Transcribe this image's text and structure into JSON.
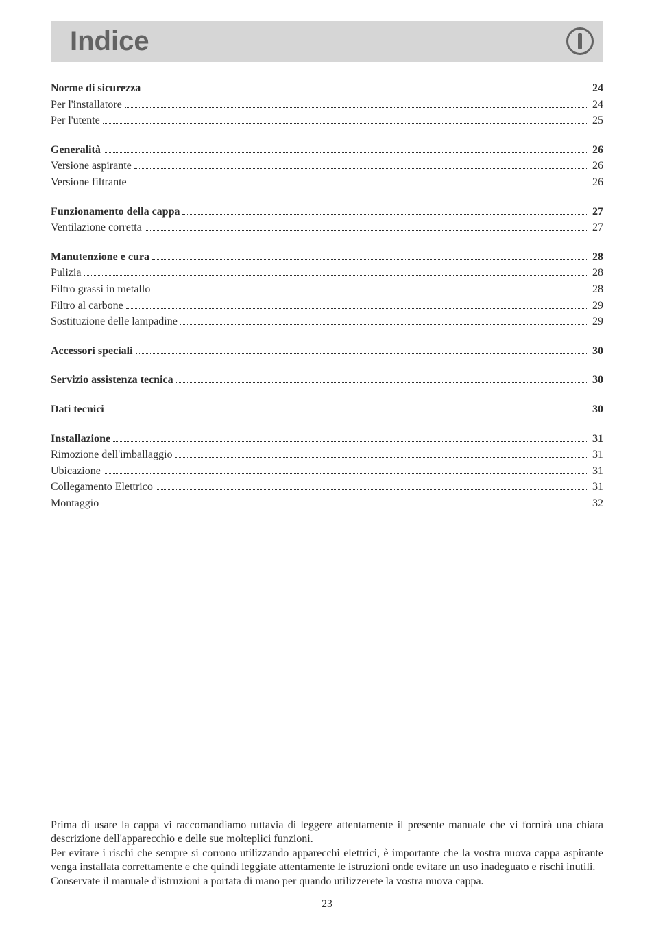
{
  "title": "Indice",
  "badge_letter": "I",
  "toc": [
    {
      "type": "section",
      "label": "Norme di sicurezza",
      "page": "24"
    },
    {
      "type": "item",
      "label": "Per l'installatore",
      "page": "24"
    },
    {
      "type": "item",
      "label": "Per l'utente",
      "page": "25"
    },
    {
      "type": "gap"
    },
    {
      "type": "section",
      "label": "Generalità",
      "page": "26"
    },
    {
      "type": "item",
      "label": "Versione aspirante",
      "page": "26"
    },
    {
      "type": "item",
      "label": "Versione filtrante",
      "page": "26"
    },
    {
      "type": "gap"
    },
    {
      "type": "section",
      "label": "Funzionamento della cappa",
      "page": "27"
    },
    {
      "type": "item",
      "label": "Ventilazione corretta",
      "page": "27"
    },
    {
      "type": "gap"
    },
    {
      "type": "section",
      "label": "Manutenzione e cura",
      "page": "28"
    },
    {
      "type": "item",
      "label": "Pulizia",
      "page": "28"
    },
    {
      "type": "item",
      "label": "Filtro grassi in metallo",
      "page": "28"
    },
    {
      "type": "item",
      "label": "Filtro al carbone",
      "page": "29"
    },
    {
      "type": "item",
      "label": "Sostituzione delle lampadine",
      "page": "29"
    },
    {
      "type": "gap"
    },
    {
      "type": "section",
      "label": "Accessori speciali",
      "page": "30"
    },
    {
      "type": "gap"
    },
    {
      "type": "section",
      "label": "Servizio assistenza tecnica",
      "page": "30"
    },
    {
      "type": "gap"
    },
    {
      "type": "section",
      "label": "Dati tecnici",
      "page": "30"
    },
    {
      "type": "gap"
    },
    {
      "type": "section",
      "label": "Installazione",
      "page": "31"
    },
    {
      "type": "item",
      "label": "Rimozione dell'imballaggio",
      "page": "31"
    },
    {
      "type": "item",
      "label": "Ubicazione",
      "page": "31"
    },
    {
      "type": "item",
      "label": "Collegamento Elettrico",
      "page": "31"
    },
    {
      "type": "item",
      "label": "Montaggio",
      "page": "32"
    }
  ],
  "footer": {
    "p1": "Prima di usare la cappa vi raccomandiamo tuttavia di leggere attentamente il presente manuale che vi fornirà una chiara descrizione dell'apparecchio e delle sue molteplici funzioni.",
    "p2": "Per evitare i rischi che sempre si corrono utilizzando apparecchi elettrici, è importante che la vostra nuova cappa aspirante venga installata correttamente e che quindi leggiate attentamente le istruzioni onde evitare un uso inadeguato e rischi inutili.",
    "p3": "Conservate il manuale d'istruzioni a portata di mano per quando utilizzerete la vostra nuova cappa."
  },
  "page_number": "23"
}
